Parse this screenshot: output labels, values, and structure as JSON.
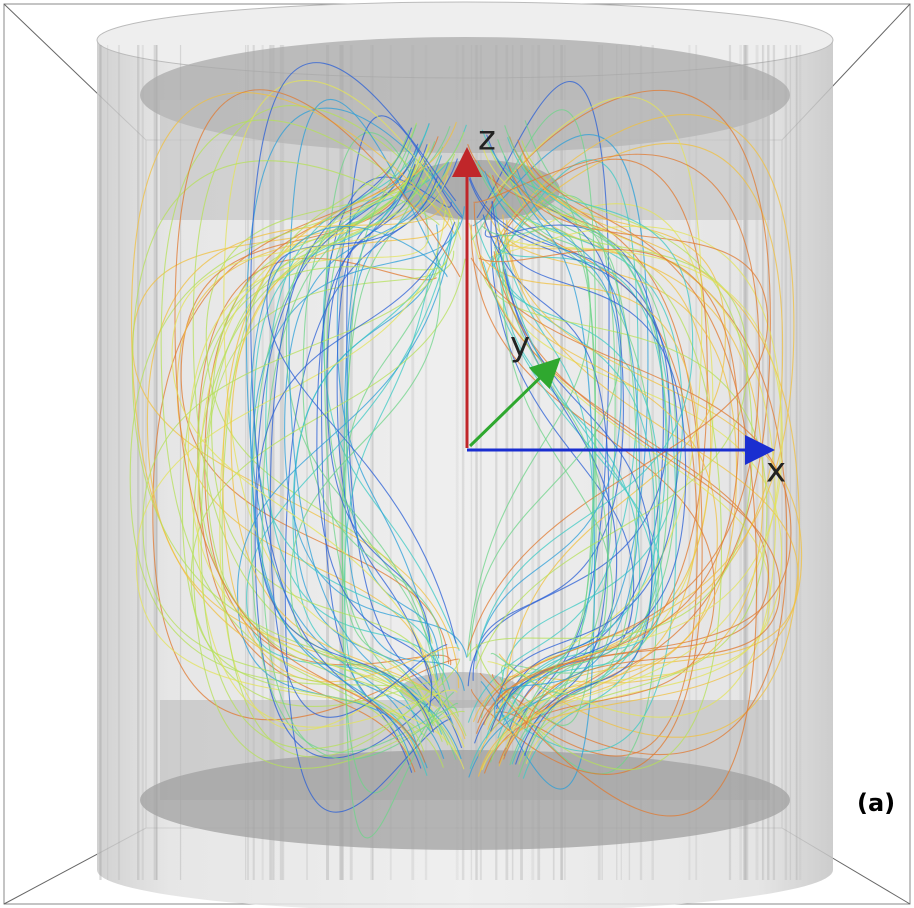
{
  "axes": {
    "z": "z",
    "y": "y",
    "x": "x"
  },
  "panel_label": "(a)"
}
